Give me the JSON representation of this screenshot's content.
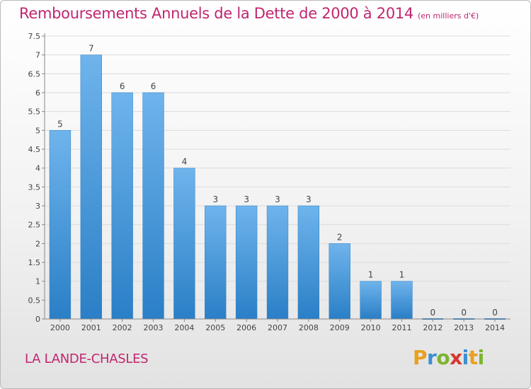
{
  "title": "Remboursements Annuels de la Dette de 2000 à 2014",
  "unit": "(en milliers d'€)",
  "commune": "LA LANDE-CHASLES",
  "logo": {
    "letters": [
      "P",
      "r",
      "o",
      "x",
      "i",
      "t",
      "i"
    ]
  },
  "colors": {
    "title": "#c0266f",
    "bar_top": "#6fb4ec",
    "bar_bottom": "#2a7fc6",
    "grid": "#d8d8d8"
  },
  "chart_data": {
    "type": "bar",
    "categories": [
      "2000",
      "2001",
      "2002",
      "2003",
      "2004",
      "2005",
      "2006",
      "2007",
      "2008",
      "2009",
      "2010",
      "2011",
      "2012",
      "2013",
      "2014"
    ],
    "values": [
      5,
      7,
      6,
      6,
      4,
      3,
      3,
      3,
      3,
      2,
      1,
      1,
      0,
      0,
      0
    ],
    "data_labels": [
      "5",
      "7",
      "6",
      "6",
      "4",
      "3",
      "3",
      "3",
      "3",
      "2",
      "1",
      "1",
      "0",
      "0",
      "0"
    ],
    "yticks": [
      "0",
      "0.5",
      "1",
      "1.5",
      "2",
      "2.5",
      "3",
      "3.5",
      "4",
      "4.5",
      "5",
      "5.5",
      "6",
      "6.5",
      "7",
      "7.5"
    ],
    "ylim": [
      0,
      7.5
    ],
    "grid": true,
    "xlabel": "",
    "ylabel": ""
  }
}
